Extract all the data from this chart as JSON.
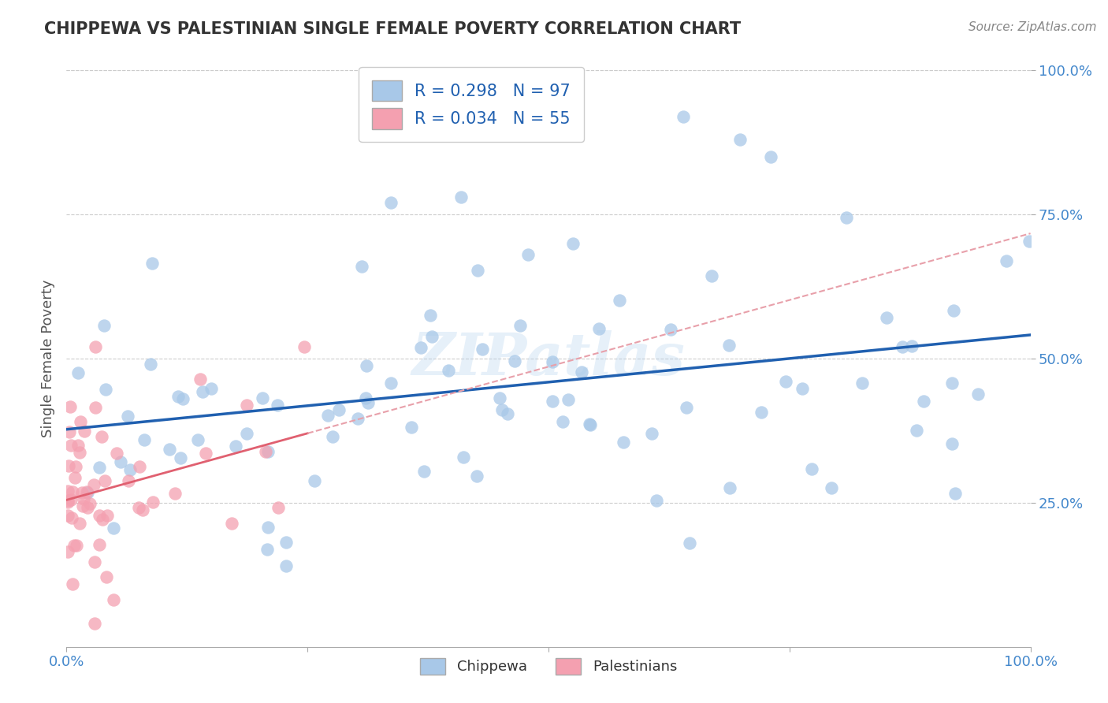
{
  "title": "CHIPPEWA VS PALESTINIAN SINGLE FEMALE POVERTY CORRELATION CHART",
  "source_text": "Source: ZipAtlas.com",
  "ylabel": "Single Female Poverty",
  "chippewa_R": "0.298",
  "chippewa_N": "97",
  "palestinians_R": "0.034",
  "palestinians_N": "55",
  "xlim": [
    0,
    1
  ],
  "ylim": [
    0,
    1
  ],
  "chippewa_color": "#A8C8E8",
  "palestinians_color": "#F4A0B0",
  "chippewa_line_color": "#2060B0",
  "palestinians_line_solid_color": "#E06070",
  "palestinians_line_dash_color": "#E8A0AA",
  "background_color": "#FFFFFF",
  "grid_color": "#CCCCCC",
  "watermark_text": "ZIPatlas",
  "title_color": "#333333",
  "source_color": "#888888",
  "tick_color": "#4488CC",
  "ylabel_color": "#555555"
}
